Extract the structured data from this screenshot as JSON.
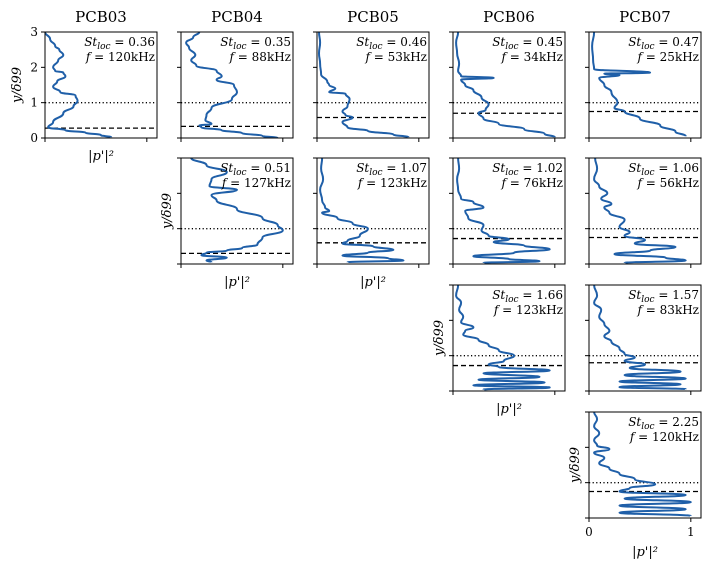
{
  "column_titles": [
    "PCB03",
    "PCB04",
    "PCB05",
    "PCB06",
    "PCB07"
  ],
  "axis_text": {
    "ylabel": "y/δ99",
    "xlabel": "|p'|²",
    "y_ticks": [
      "0",
      "1",
      "2",
      "3"
    ],
    "x_ticks": [
      "0",
      "1"
    ]
  },
  "chart_data": {
    "type": "line",
    "layout": "grid of line profiles; rows = modes, columns = probes (upper-right triangle filled)",
    "x_label": "|p'|²",
    "y_label": "y/δ99",
    "xlim": [
      0,
      1.1
    ],
    "ylim": [
      0,
      3
    ],
    "line_color": "#1f5fa8",
    "reference_lines": {
      "dotted": "y = 1",
      "dashed": "varies by probe"
    },
    "panels": [
      {
        "row": 0,
        "col": 0,
        "probe": "PCB03",
        "st_loc": "0.36",
        "freq": "120kHz",
        "dashed_y": 0.28,
        "profile": [
          [
            0.0,
            3.0
          ],
          [
            0.05,
            2.8
          ],
          [
            0.1,
            2.6
          ],
          [
            0.14,
            2.5
          ],
          [
            0.18,
            2.35
          ],
          [
            0.13,
            2.2
          ],
          [
            0.08,
            2.0
          ],
          [
            0.1,
            1.9
          ],
          [
            0.18,
            1.85
          ],
          [
            0.2,
            1.75
          ],
          [
            0.12,
            1.6
          ],
          [
            0.08,
            1.45
          ],
          [
            0.15,
            1.3
          ],
          [
            0.3,
            1.2
          ],
          [
            0.32,
            1.05
          ],
          [
            0.28,
            0.9
          ],
          [
            0.18,
            0.7
          ],
          [
            0.08,
            0.45
          ],
          [
            0.03,
            0.3
          ],
          [
            0.2,
            0.22
          ],
          [
            0.4,
            0.15
          ],
          [
            0.55,
            0.08
          ],
          [
            0.65,
            0.02
          ]
        ]
      },
      {
        "row": 0,
        "col": 1,
        "probe": "PCB04",
        "st_loc": "0.35",
        "freq": "88kHz",
        "dashed_y": 0.33,
        "profile": [
          [
            0.18,
            3.0
          ],
          [
            0.12,
            2.85
          ],
          [
            0.05,
            2.7
          ],
          [
            0.08,
            2.55
          ],
          [
            0.14,
            2.35
          ],
          [
            0.1,
            2.2
          ],
          [
            0.15,
            2.05
          ],
          [
            0.35,
            1.9
          ],
          [
            0.4,
            1.75
          ],
          [
            0.35,
            1.65
          ],
          [
            0.52,
            1.5
          ],
          [
            0.55,
            1.3
          ],
          [
            0.5,
            1.1
          ],
          [
            0.3,
            0.85
          ],
          [
            0.25,
            0.65
          ],
          [
            0.24,
            0.5
          ],
          [
            0.3,
            0.4
          ],
          [
            0.18,
            0.35
          ],
          [
            0.2,
            0.3
          ],
          [
            0.4,
            0.22
          ],
          [
            0.6,
            0.14
          ],
          [
            0.8,
            0.06
          ],
          [
            0.95,
            0.0
          ]
        ]
      },
      {
        "row": 0,
        "col": 2,
        "probe": "PCB05",
        "st_loc": "0.46",
        "freq": "53kHz",
        "dashed_y": 0.58,
        "profile": [
          [
            0.02,
            3.0
          ],
          [
            0.03,
            2.7
          ],
          [
            0.02,
            2.4
          ],
          [
            0.03,
            2.1
          ],
          [
            0.04,
            1.8
          ],
          [
            0.1,
            1.6
          ],
          [
            0.12,
            1.5
          ],
          [
            0.18,
            1.4
          ],
          [
            0.12,
            1.3
          ],
          [
            0.28,
            1.25
          ],
          [
            0.32,
            1.1
          ],
          [
            0.3,
            0.9
          ],
          [
            0.25,
            0.75
          ],
          [
            0.28,
            0.65
          ],
          [
            0.35,
            0.58
          ],
          [
            0.25,
            0.45
          ],
          [
            0.3,
            0.3
          ],
          [
            0.5,
            0.2
          ],
          [
            0.75,
            0.1
          ],
          [
            0.9,
            0.02
          ]
        ]
      },
      {
        "row": 0,
        "col": 3,
        "probe": "PCB06",
        "st_loc": "0.45",
        "freq": "34kHz",
        "dashed_y": 0.7,
        "profile": [
          [
            0.05,
            3.0
          ],
          [
            0.03,
            2.7
          ],
          [
            0.04,
            2.4
          ],
          [
            0.06,
            2.1
          ],
          [
            0.05,
            1.9
          ],
          [
            0.08,
            1.75
          ],
          [
            0.4,
            1.7
          ],
          [
            0.08,
            1.65
          ],
          [
            0.12,
            1.5
          ],
          [
            0.2,
            1.35
          ],
          [
            0.28,
            1.15
          ],
          [
            0.35,
            0.95
          ],
          [
            0.32,
            0.8
          ],
          [
            0.25,
            0.7
          ],
          [
            0.3,
            0.55
          ],
          [
            0.45,
            0.4
          ],
          [
            0.7,
            0.25
          ],
          [
            0.9,
            0.12
          ],
          [
            1.0,
            0.02
          ]
        ]
      },
      {
        "row": 0,
        "col": 4,
        "probe": "PCB07",
        "st_loc": "0.47",
        "freq": "25kHz",
        "dashed_y": 0.75,
        "profile": [
          [
            0.05,
            3.0
          ],
          [
            0.03,
            2.6
          ],
          [
            0.04,
            2.2
          ],
          [
            0.05,
            1.95
          ],
          [
            0.6,
            1.85
          ],
          [
            0.15,
            1.82
          ],
          [
            0.3,
            1.78
          ],
          [
            0.1,
            1.7
          ],
          [
            0.15,
            1.5
          ],
          [
            0.22,
            1.3
          ],
          [
            0.28,
            1.0
          ],
          [
            0.25,
            0.85
          ],
          [
            0.35,
            0.75
          ],
          [
            0.5,
            0.55
          ],
          [
            0.7,
            0.35
          ],
          [
            0.85,
            0.18
          ],
          [
            0.95,
            0.05
          ]
        ]
      },
      {
        "row": 1,
        "col": 1,
        "probe": "PCB04",
        "st_loc": "0.51",
        "freq": "127kHz",
        "dashed_y": 0.3,
        "profile": [
          [
            0.1,
            3.0
          ],
          [
            0.25,
            2.8
          ],
          [
            0.45,
            2.6
          ],
          [
            0.3,
            2.4
          ],
          [
            0.28,
            2.2
          ],
          [
            0.55,
            2.1
          ],
          [
            0.3,
            1.95
          ],
          [
            0.35,
            1.8
          ],
          [
            0.55,
            1.55
          ],
          [
            0.8,
            1.3
          ],
          [
            0.95,
            1.1
          ],
          [
            1.0,
            0.95
          ],
          [
            0.8,
            0.75
          ],
          [
            0.75,
            0.55
          ],
          [
            0.6,
            0.45
          ],
          [
            0.45,
            0.38
          ],
          [
            0.25,
            0.32
          ],
          [
            0.2,
            0.25
          ],
          [
            0.45,
            0.18
          ],
          [
            0.25,
            0.1
          ],
          [
            0.3,
            0.05
          ]
        ]
      },
      {
        "row": 1,
        "col": 2,
        "probe": "PCB05",
        "st_loc": "1.07",
        "freq": "123kHz",
        "dashed_y": 0.6,
        "profile": [
          [
            0.05,
            3.0
          ],
          [
            0.04,
            2.7
          ],
          [
            0.06,
            2.4
          ],
          [
            0.03,
            2.1
          ],
          [
            0.05,
            1.8
          ],
          [
            0.08,
            1.6
          ],
          [
            0.12,
            1.5
          ],
          [
            0.05,
            1.45
          ],
          [
            0.2,
            1.3
          ],
          [
            0.35,
            1.15
          ],
          [
            0.5,
            1.0
          ],
          [
            0.42,
            0.8
          ],
          [
            0.3,
            0.65
          ],
          [
            0.25,
            0.58
          ],
          [
            0.55,
            0.5
          ],
          [
            0.75,
            0.4
          ],
          [
            0.5,
            0.32
          ],
          [
            0.25,
            0.24
          ],
          [
            0.7,
            0.16
          ],
          [
            0.85,
            0.1
          ],
          [
            0.3,
            0.05
          ]
        ]
      },
      {
        "row": 1,
        "col": 3,
        "probe": "PCB06",
        "st_loc": "1.02",
        "freq": "76kHz",
        "dashed_y": 0.72,
        "profile": [
          [
            0.05,
            3.0
          ],
          [
            0.06,
            2.7
          ],
          [
            0.04,
            2.4
          ],
          [
            0.05,
            2.1
          ],
          [
            0.08,
            1.85
          ],
          [
            0.2,
            1.75
          ],
          [
            0.3,
            1.6
          ],
          [
            0.12,
            1.5
          ],
          [
            0.15,
            1.3
          ],
          [
            0.3,
            1.1
          ],
          [
            0.28,
            0.95
          ],
          [
            0.35,
            0.8
          ],
          [
            0.55,
            0.7
          ],
          [
            0.4,
            0.62
          ],
          [
            0.7,
            0.52
          ],
          [
            0.95,
            0.42
          ],
          [
            0.6,
            0.32
          ],
          [
            0.2,
            0.22
          ],
          [
            0.55,
            0.14
          ],
          [
            0.85,
            0.08
          ],
          [
            0.3,
            0.03
          ]
        ]
      },
      {
        "row": 1,
        "col": 4,
        "probe": "PCB07",
        "st_loc": "1.06",
        "freq": "56kHz",
        "dashed_y": 0.75,
        "profile": [
          [
            0.06,
            3.0
          ],
          [
            0.08,
            2.7
          ],
          [
            0.05,
            2.4
          ],
          [
            0.1,
            2.2
          ],
          [
            0.18,
            2.0
          ],
          [
            0.12,
            1.85
          ],
          [
            0.22,
            1.7
          ],
          [
            0.15,
            1.6
          ],
          [
            0.2,
            1.45
          ],
          [
            0.35,
            1.25
          ],
          [
            0.3,
            1.05
          ],
          [
            0.4,
            0.9
          ],
          [
            0.35,
            0.8
          ],
          [
            0.55,
            0.68
          ],
          [
            0.45,
            0.58
          ],
          [
            0.85,
            0.48
          ],
          [
            0.6,
            0.38
          ],
          [
            0.25,
            0.28
          ],
          [
            0.75,
            0.18
          ],
          [
            0.95,
            0.1
          ],
          [
            0.35,
            0.03
          ]
        ]
      },
      {
        "row": 2,
        "col": 3,
        "probe": "PCB06",
        "st_loc": "1.66",
        "freq": "123kHz",
        "dashed_y": 0.72,
        "profile": [
          [
            0.05,
            3.0
          ],
          [
            0.03,
            2.7
          ],
          [
            0.08,
            2.5
          ],
          [
            0.06,
            2.3
          ],
          [
            0.1,
            2.1
          ],
          [
            0.08,
            1.95
          ],
          [
            0.2,
            1.8
          ],
          [
            0.12,
            1.7
          ],
          [
            0.1,
            1.6
          ],
          [
            0.25,
            1.45
          ],
          [
            0.35,
            1.3
          ],
          [
            0.45,
            1.15
          ],
          [
            0.6,
            1.0
          ],
          [
            0.5,
            0.85
          ],
          [
            0.35,
            0.75
          ],
          [
            0.45,
            0.68
          ],
          [
            0.95,
            0.58
          ],
          [
            0.3,
            0.5
          ],
          [
            0.85,
            0.4
          ],
          [
            0.25,
            0.32
          ],
          [
            0.9,
            0.24
          ],
          [
            0.2,
            0.16
          ],
          [
            0.95,
            0.1
          ],
          [
            0.3,
            0.04
          ]
        ]
      },
      {
        "row": 2,
        "col": 4,
        "probe": "PCB07",
        "st_loc": "1.57",
        "freq": "83kHz",
        "dashed_y": 0.8,
        "profile": [
          [
            0.05,
            3.0
          ],
          [
            0.08,
            2.7
          ],
          [
            0.05,
            2.5
          ],
          [
            0.12,
            2.3
          ],
          [
            0.1,
            2.1
          ],
          [
            0.15,
            1.9
          ],
          [
            0.2,
            1.7
          ],
          [
            0.15,
            1.55
          ],
          [
            0.22,
            1.4
          ],
          [
            0.3,
            1.2
          ],
          [
            0.35,
            1.05
          ],
          [
            0.45,
            0.95
          ],
          [
            0.35,
            0.85
          ],
          [
            0.55,
            0.75
          ],
          [
            0.4,
            0.65
          ],
          [
            0.9,
            0.55
          ],
          [
            0.35,
            0.45
          ],
          [
            0.95,
            0.35
          ],
          [
            0.3,
            0.27
          ],
          [
            0.9,
            0.19
          ],
          [
            0.3,
            0.11
          ],
          [
            0.95,
            0.05
          ]
        ]
      },
      {
        "row": 3,
        "col": 4,
        "probe": "PCB07",
        "st_loc": "2.25",
        "freq": "120kHz",
        "dashed_y": 0.75,
        "profile": [
          [
            0.05,
            3.0
          ],
          [
            0.08,
            2.8
          ],
          [
            0.05,
            2.6
          ],
          [
            0.1,
            2.4
          ],
          [
            0.05,
            2.2
          ],
          [
            0.08,
            2.05
          ],
          [
            0.2,
            1.95
          ],
          [
            0.05,
            1.85
          ],
          [
            0.15,
            1.7
          ],
          [
            0.1,
            1.55
          ],
          [
            0.2,
            1.4
          ],
          [
            0.3,
            1.25
          ],
          [
            0.45,
            1.1
          ],
          [
            0.65,
            0.95
          ],
          [
            0.4,
            0.85
          ],
          [
            0.3,
            0.75
          ],
          [
            0.95,
            0.65
          ],
          [
            0.35,
            0.55
          ],
          [
            1.0,
            0.45
          ],
          [
            0.3,
            0.35
          ],
          [
            0.95,
            0.25
          ],
          [
            0.3,
            0.15
          ],
          [
            1.0,
            0.06
          ]
        ]
      }
    ]
  }
}
